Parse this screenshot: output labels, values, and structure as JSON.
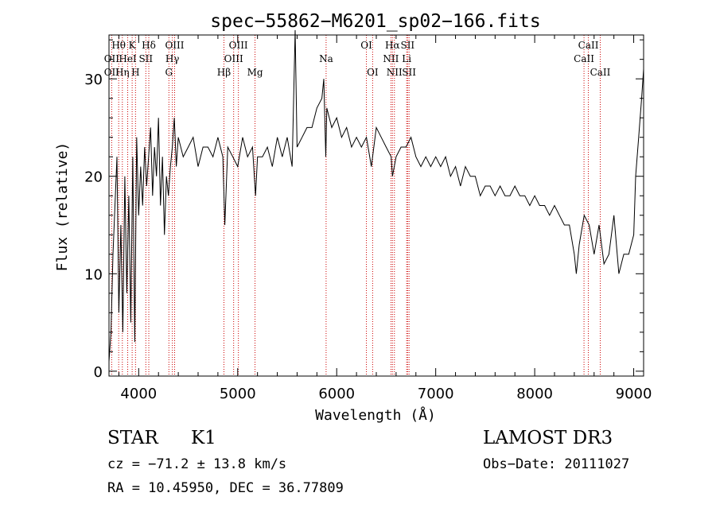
{
  "chart_data": {
    "type": "line",
    "title": "spec−55862−M6201_sp02−166.fits",
    "xlabel": "Wavelength (Å)",
    "ylabel": "Flux (relative)",
    "xlim": [
      3700,
      9100
    ],
    "ylim": [
      -0.5,
      34.5
    ],
    "xticks": [
      4000,
      5000,
      6000,
      7000,
      8000,
      9000
    ],
    "yticks": [
      0,
      10,
      20,
      30
    ],
    "series": [
      {
        "name": "flux",
        "x": [
          3700,
          3720,
          3740,
          3760,
          3780,
          3800,
          3820,
          3840,
          3860,
          3880,
          3900,
          3920,
          3940,
          3960,
          3980,
          4000,
          4020,
          4040,
          4060,
          4080,
          4100,
          4120,
          4140,
          4160,
          4180,
          4200,
          4220,
          4240,
          4260,
          4280,
          4300,
          4320,
          4340,
          4360,
          4380,
          4400,
          4450,
          4500,
          4550,
          4600,
          4650,
          4700,
          4750,
          4800,
          4850,
          4870,
          4900,
          4950,
          5000,
          5050,
          5100,
          5150,
          5180,
          5200,
          5250,
          5300,
          5350,
          5400,
          5450,
          5500,
          5550,
          5580,
          5600,
          5650,
          5700,
          5750,
          5800,
          5850,
          5870,
          5890,
          5900,
          5950,
          6000,
          6050,
          6100,
          6150,
          6200,
          6250,
          6300,
          6350,
          6400,
          6450,
          6500,
          6550,
          6563,
          6600,
          6650,
          6700,
          6750,
          6800,
          6850,
          6900,
          6950,
          7000,
          7050,
          7100,
          7150,
          7200,
          7250,
          7300,
          7350,
          7400,
          7450,
          7500,
          7550,
          7600,
          7650,
          7700,
          7750,
          7800,
          7850,
          7900,
          7950,
          8000,
          8050,
          8100,
          8150,
          8200,
          8250,
          8300,
          8350,
          8400,
          8420,
          8450,
          8500,
          8550,
          8600,
          8650,
          8700,
          8750,
          8800,
          8850,
          8900,
          8950,
          9000,
          9020,
          9050,
          9080,
          9100
        ],
        "y": [
          1,
          4,
          12,
          17,
          22,
          6,
          15,
          4,
          20,
          8,
          18,
          5,
          22,
          3,
          24,
          16,
          21,
          17,
          23,
          19,
          22,
          25,
          18,
          23,
          20,
          26,
          17,
          22,
          14,
          20,
          18,
          21,
          23,
          26,
          21,
          24,
          22,
          23,
          24,
          21,
          23,
          23,
          22,
          24,
          22,
          15,
          23,
          22,
          21,
          24,
          22,
          23,
          18,
          22,
          22,
          23,
          21,
          24,
          22,
          24,
          21,
          35,
          23,
          24,
          25,
          25,
          27,
          28,
          30,
          22,
          27,
          25,
          26,
          24,
          25,
          23,
          24,
          23,
          24,
          21,
          25,
          24,
          23,
          22,
          20,
          22,
          23,
          23,
          24,
          22,
          21,
          22,
          21,
          22,
          21,
          22,
          20,
          21,
          19,
          21,
          20,
          20,
          18,
          19,
          19,
          18,
          19,
          18,
          18,
          19,
          18,
          18,
          17,
          18,
          17,
          17,
          16,
          17,
          16,
          15,
          15,
          12,
          10,
          13,
          16,
          15,
          12,
          15,
          11,
          12,
          16,
          10,
          12,
          12,
          14,
          20,
          24,
          28,
          31
        ]
      }
    ],
    "line_markers": [
      {
        "label": "OII",
        "wavelength": 3727,
        "row": 2
      },
      {
        "label": "OII",
        "wavelength": 3727,
        "row": 3
      },
      {
        "label": "Hθ",
        "wavelength": 3798,
        "row": 1
      },
      {
        "label": "Hη",
        "wavelength": 3835,
        "row": 3
      },
      {
        "label": "HeI",
        "wavelength": 3889,
        "row": 2
      },
      {
        "label": "K",
        "wavelength": 3934,
        "row": 1
      },
      {
        "label": "H",
        "wavelength": 3968,
        "row": 3
      },
      {
        "label": "SII",
        "wavelength": 4072,
        "row": 2
      },
      {
        "label": "Hδ",
        "wavelength": 4102,
        "row": 1
      },
      {
        "label": "G",
        "wavelength": 4305,
        "row": 3
      },
      {
        "label": "Hγ",
        "wavelength": 4340,
        "row": 2
      },
      {
        "label": "OIII",
        "wavelength": 4363,
        "row": 1
      },
      {
        "label": "Hβ",
        "wavelength": 4861,
        "row": 3
      },
      {
        "label": "OIII",
        "wavelength": 4959,
        "row": 2
      },
      {
        "label": "OIII",
        "wavelength": 5007,
        "row": 1
      },
      {
        "label": "Mg",
        "wavelength": 5175,
        "row": 3
      },
      {
        "label": "Na",
        "wavelength": 5893,
        "row": 2
      },
      {
        "label": "OI",
        "wavelength": 6300,
        "row": 1
      },
      {
        "label": "OI",
        "wavelength": 6363,
        "row": 3
      },
      {
        "label": "NII",
        "wavelength": 6548,
        "row": 2
      },
      {
        "label": "Hα",
        "wavelength": 6563,
        "row": 1
      },
      {
        "label": "NII",
        "wavelength": 6583,
        "row": 3
      },
      {
        "label": "Li",
        "wavelength": 6707,
        "row": 2
      },
      {
        "label": "SII",
        "wavelength": 6716,
        "row": 1
      },
      {
        "label": "SII",
        "wavelength": 6731,
        "row": 3
      },
      {
        "label": "CaII",
        "wavelength": 8498,
        "row": 2
      },
      {
        "label": "CaII",
        "wavelength": 8542,
        "row": 1
      },
      {
        "label": "CaII",
        "wavelength": 8662,
        "row": 3
      }
    ],
    "colors": {
      "spectrum": "#000000",
      "markers": "#cc0000",
      "text": "#000000"
    }
  },
  "info": {
    "object_class": "STAR",
    "subclass": "K1",
    "survey": "LAMOST DR3",
    "redshift": "cz = −71.2 ± 13.8 km/s",
    "obs_date": "Obs−Date: 20111027",
    "coords": "RA =  10.45950, DEC =  36.77809"
  }
}
